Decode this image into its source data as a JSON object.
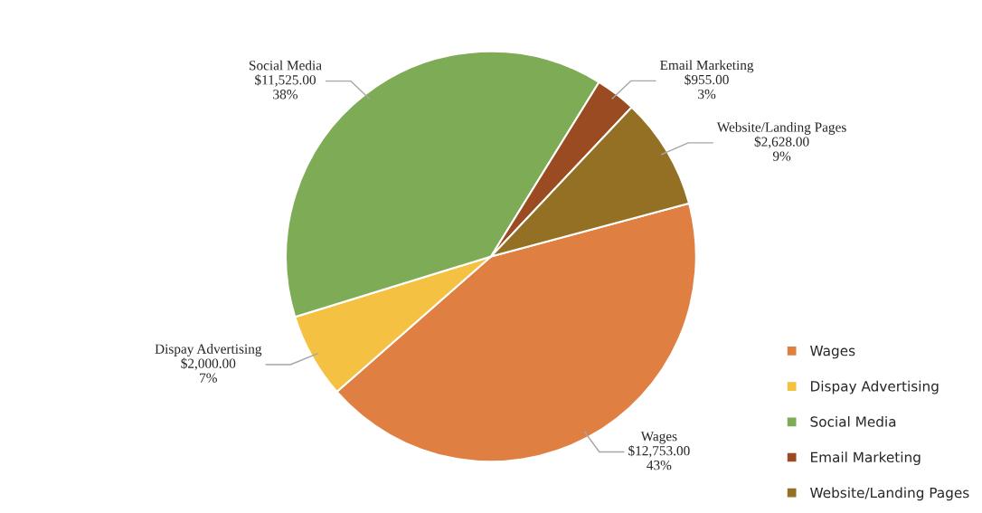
{
  "chart_data": {
    "type": "pie",
    "categories": [
      "Wages",
      "Dispay Advertising",
      "Social Media",
      "Email Marketing",
      "Website/Landing Pages"
    ],
    "values": [
      12753,
      2000,
      11525,
      955,
      2628
    ],
    "colors": [
      "#e07f42",
      "#f4c142",
      "#7eab55",
      "#9a4b22",
      "#937024"
    ],
    "value_labels": [
      "$12,753.00\n43%",
      "$2,000.00\n7%",
      "$11,525.00\n38%",
      "$955.00\n3%",
      "$2,628.00\n9%"
    ],
    "legend": "bottom right"
  }
}
